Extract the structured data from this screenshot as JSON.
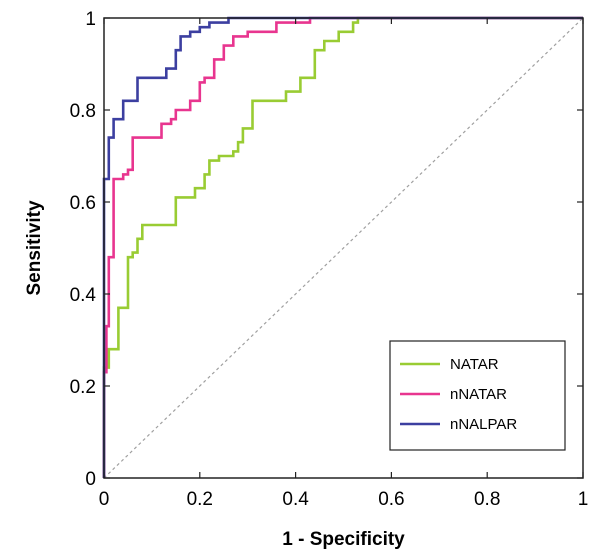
{
  "chart_data": {
    "type": "line",
    "title": "",
    "xlabel": "1 - Specificity",
    "ylabel": "Sensitivity",
    "xlim": [
      0,
      1
    ],
    "ylim": [
      0,
      1
    ],
    "x_ticks": [
      "0",
      "0.2",
      "0.4",
      "0.6",
      "0.8",
      "1"
    ],
    "y_ticks": [
      "0",
      "0.2",
      "0.4",
      "0.6",
      "0.8",
      "1"
    ],
    "grid": false,
    "legend": "bottom-right",
    "reference_line": {
      "x": [
        0,
        1
      ],
      "y": [
        0,
        1
      ],
      "color": "#a0a0a0",
      "style": "dashed"
    },
    "series": [
      {
        "name": "NATAR",
        "color": "#99cc33",
        "x": [
          0,
          0,
          0.01,
          0.01,
          0.03,
          0.03,
          0.05,
          0.05,
          0.06,
          0.06,
          0.07,
          0.07,
          0.08,
          0.08,
          0.09,
          0.09,
          0.15,
          0.15,
          0.19,
          0.19,
          0.21,
          0.21,
          0.22,
          0.22,
          0.24,
          0.24,
          0.27,
          0.27,
          0.28,
          0.28,
          0.29,
          0.29,
          0.31,
          0.31,
          0.38,
          0.38,
          0.41,
          0.41,
          0.42,
          0.42,
          0.44,
          0.44,
          0.46,
          0.46,
          0.49,
          0.49,
          0.52,
          0.52,
          0.53,
          0.53,
          0.55,
          0.55,
          1.0
        ],
        "y": [
          0,
          0.24,
          0.24,
          0.28,
          0.28,
          0.37,
          0.37,
          0.48,
          0.48,
          0.49,
          0.49,
          0.52,
          0.52,
          0.55,
          0.55,
          0.55,
          0.55,
          0.61,
          0.61,
          0.63,
          0.63,
          0.66,
          0.66,
          0.69,
          0.69,
          0.7,
          0.7,
          0.71,
          0.71,
          0.73,
          0.73,
          0.76,
          0.76,
          0.82,
          0.82,
          0.84,
          0.84,
          0.87,
          0.87,
          0.87,
          0.87,
          0.93,
          0.93,
          0.95,
          0.95,
          0.97,
          0.97,
          0.99,
          0.99,
          1.0,
          1.0,
          1.0,
          1.0
        ]
      },
      {
        "name": "nNATAR",
        "color": "#e8358f",
        "x": [
          0,
          0,
          0.005,
          0.005,
          0.01,
          0.01,
          0.02,
          0.02,
          0.04,
          0.04,
          0.05,
          0.05,
          0.06,
          0.06,
          0.08,
          0.08,
          0.12,
          0.12,
          0.14,
          0.14,
          0.15,
          0.15,
          0.18,
          0.18,
          0.2,
          0.2,
          0.21,
          0.21,
          0.23,
          0.23,
          0.25,
          0.25,
          0.27,
          0.27,
          0.3,
          0.3,
          0.36,
          0.36,
          0.43,
          0.43,
          1.0
        ],
        "y": [
          0,
          0.23,
          0.23,
          0.33,
          0.33,
          0.48,
          0.48,
          0.65,
          0.65,
          0.66,
          0.66,
          0.67,
          0.67,
          0.74,
          0.74,
          0.74,
          0.74,
          0.77,
          0.77,
          0.78,
          0.78,
          0.8,
          0.8,
          0.82,
          0.82,
          0.86,
          0.86,
          0.87,
          0.87,
          0.91,
          0.91,
          0.94,
          0.94,
          0.96,
          0.96,
          0.97,
          0.97,
          0.99,
          0.99,
          1.0,
          1.0
        ]
      },
      {
        "name": "nNALPAR",
        "color": "#3c3fa0",
        "x": [
          0,
          0,
          0.01,
          0.01,
          0.02,
          0.02,
          0.04,
          0.04,
          0.05,
          0.05,
          0.07,
          0.07,
          0.09,
          0.09,
          0.13,
          0.13,
          0.15,
          0.15,
          0.16,
          0.16,
          0.18,
          0.18,
          0.2,
          0.2,
          0.22,
          0.22,
          0.26,
          0.26,
          0.46,
          0.46,
          1.0
        ],
        "y": [
          0,
          0.65,
          0.65,
          0.74,
          0.74,
          0.78,
          0.78,
          0.82,
          0.82,
          0.82,
          0.82,
          0.87,
          0.87,
          0.87,
          0.87,
          0.89,
          0.89,
          0.93,
          0.93,
          0.96,
          0.96,
          0.97,
          0.97,
          0.98,
          0.98,
          0.99,
          0.99,
          1.0,
          1.0,
          1.0,
          1.0
        ]
      }
    ]
  }
}
